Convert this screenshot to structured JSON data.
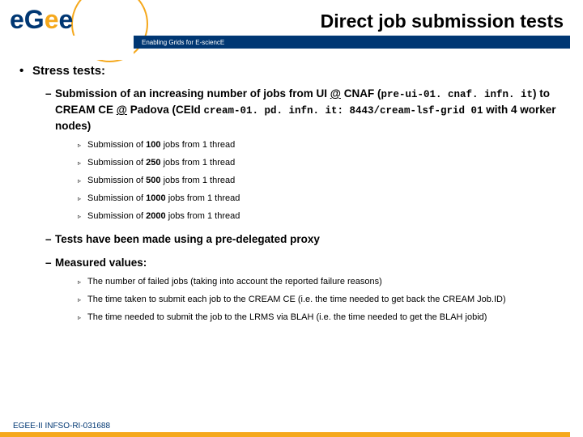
{
  "colors": {
    "blue_bar": "#003773",
    "orange": "#f5a81c",
    "text": "#000000",
    "footer_text": "#003773",
    "bg": "#ffffff"
  },
  "typography": {
    "title_fontsize": 23,
    "l1_fontsize": 15,
    "l2_fontsize": 13.5,
    "l3_fontsize": 11,
    "mono_fontsize": 12.5,
    "footer_fontsize": 10
  },
  "logo": {
    "text_main": "eGee",
    "letters": [
      "e",
      "G",
      "e",
      "e"
    ],
    "letter_colors": [
      "#003773",
      "#003773",
      "#f5a81c",
      "#003773"
    ]
  },
  "header": {
    "title": "Direct job submission tests",
    "subtitle": "Enabling Grids for E-sciencE"
  },
  "content": {
    "l1": "Stress tests:",
    "l2_1_prefix": "Submission of an increasing number of jobs from UI ",
    "l2_1_at1": "@",
    "l2_1_cnaf": " CNAF (",
    "l2_1_host1": "pre-ui-01. cnaf. infn. it",
    "l2_1_mid": ") to CREAM CE ",
    "l2_1_at2": "@",
    "l2_1_pad": " Padova (CEId ",
    "l2_1_host2": "cream-01. pd. infn. it: 8443/cream-lsf-grid 01",
    "l2_1_suffix": " with 4 worker nodes)",
    "sub_items": [
      {
        "pre": "Submission of ",
        "n": "100",
        "post": " jobs from 1 thread"
      },
      {
        "pre": "Submission of ",
        "n": "250",
        "post": " jobs from 1 thread"
      },
      {
        "pre": "Submission of ",
        "n": "500",
        "post": " jobs from 1 thread"
      },
      {
        "pre": "Submission of ",
        "n": "1000",
        "post": " jobs from 1 thread"
      },
      {
        "pre": "Submission of ",
        "n": "2000",
        "post": " jobs from 1 thread"
      }
    ],
    "l2_2": "Tests have been made using a pre-delegated proxy",
    "l2_3": "Measured values:",
    "measured": [
      "The number of failed jobs (taking into account the reported failure reasons)",
      "The time taken to submit each job to the CREAM CE (i.e. the time needed to get back the CREAM Job.ID)",
      "The time needed to submit the job to the LRMS via BLAH (i.e. the time needed to get the BLAH jobid)"
    ]
  },
  "footer": "EGEE-II INFSO-RI-031688"
}
